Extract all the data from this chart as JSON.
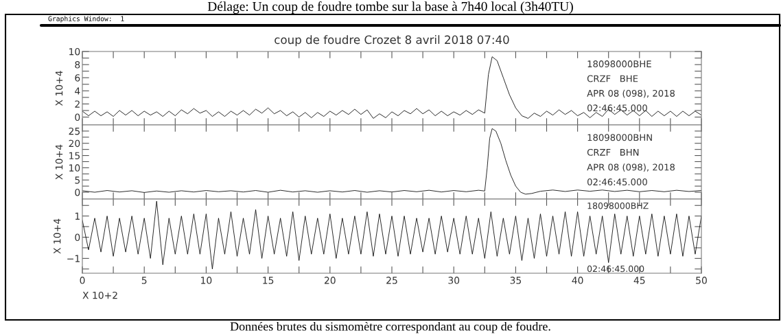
{
  "chart_data": [
    {
      "type": "line",
      "title": "coup de foudre Crozet 8 avril 2018 07:40",
      "ylabel": "X 10+4",
      "tick_labels": "y",
      "legend": false,
      "grid": false,
      "marker": "none",
      "line_style": "solid",
      "annotations": [
        "18098000BHE",
        "CRZF   BHE",
        "APR 08 (098), 2018",
        "02:46:45.000"
      ],
      "xlim": [
        0,
        50
      ],
      "xticks": [
        0,
        {
          "value": 2.5,
          "label": null
        },
        5,
        {
          "value": 7.5,
          "label": null
        },
        10,
        {
          "value": 12.5,
          "label": null
        },
        15,
        {
          "value": 17.5,
          "label": null
        },
        20,
        {
          "value": 22.5,
          "label": null
        },
        25,
        {
          "value": 27.5,
          "label": null
        },
        30,
        {
          "value": 32.5,
          "label": null
        },
        35,
        {
          "value": 37.5,
          "label": null
        },
        40,
        {
          "value": 42.5,
          "label": null
        },
        45,
        {
          "value": 47.5,
          "label": null
        },
        50
      ],
      "ylim": [
        -1.2,
        10
      ],
      "yticks": [
        0,
        {
          "value": 1,
          "label": null
        },
        2,
        {
          "value": 3,
          "label": null
        },
        4,
        {
          "value": 5,
          "label": null
        },
        6,
        {
          "value": 7,
          "label": null
        },
        8,
        {
          "value": 9,
          "label": null
        },
        10
      ],
      "series": [
        {
          "color": "#000000",
          "x": [
            0,
            0.5,
            1,
            1.5,
            2,
            2.5,
            3,
            3.5,
            4,
            4.5,
            5,
            5.5,
            6,
            6.5,
            7,
            7.5,
            8,
            8.5,
            9,
            9.5,
            10,
            10.5,
            11,
            11.5,
            12,
            12.5,
            13,
            13.5,
            14,
            14.5,
            15,
            15.5,
            16,
            16.5,
            17,
            17.5,
            18,
            18.5,
            19,
            19.5,
            20,
            20.5,
            21,
            21.5,
            22,
            22.5,
            23,
            23.5,
            24,
            24.5,
            25,
            25.5,
            26,
            26.5,
            27,
            27.5,
            28,
            28.5,
            29,
            29.5,
            30,
            30.5,
            31,
            31.5,
            32,
            32.5,
            32.8,
            33.1,
            33.5,
            34,
            34.5,
            35,
            35.5,
            36,
            36.5,
            37,
            37.5,
            38,
            38.5,
            39,
            39.5,
            40,
            40.5,
            41,
            41.5,
            42,
            42.5,
            43,
            43.5,
            44,
            44.5,
            45,
            45.5,
            46,
            46.5,
            47,
            47.5,
            48,
            48.5,
            49,
            49.5,
            50
          ],
          "values": [
            0.9,
            0.2,
            0.9,
            0.2,
            0.8,
            0.1,
            1.0,
            0.3,
            1.0,
            0.2,
            0.9,
            0.3,
            0.8,
            0.1,
            0.9,
            0.2,
            1.1,
            0.5,
            1.3,
            0.6,
            1.0,
            0.1,
            0.8,
            0.1,
            0.9,
            0.3,
            1.0,
            0.3,
            1.2,
            0.6,
            1.4,
            0.5,
            1.0,
            0.2,
            0.8,
            0.0,
            0.7,
            -0.1,
            0.7,
            0.1,
            0.9,
            0.3,
            1.0,
            0.4,
            1.2,
            0.4,
            1.1,
            -0.2,
            0.5,
            -0.1,
            0.8,
            0.2,
            1.0,
            0.5,
            1.3,
            0.5,
            1.1,
            0.2,
            0.9,
            0.2,
            0.8,
            0.3,
            1.0,
            0.4,
            1.1,
            0.6,
            6.5,
            9.2,
            8.6,
            6.0,
            3.4,
            1.4,
            0.2,
            -0.2,
            0.6,
            0.1,
            0.9,
            0.3,
            1.1,
            0.4,
            1.0,
            0.2,
            0.7,
            -0.1,
            0.7,
            0.1,
            1.2,
            0.4,
            1.1,
            0.3,
            1.0,
            0.2,
            1.0,
            0.1,
            0.9,
            0.2,
            0.9,
            0.1,
            0.9,
            0.2,
            0.9,
            0.3
          ]
        }
      ]
    },
    {
      "type": "line",
      "ylabel": "X 10+4",
      "tick_labels": "y",
      "legend": false,
      "grid": false,
      "marker": "none",
      "line_style": "solid",
      "annotations": [
        "18098000BHN",
        "CRZF   BHN",
        "APR 08 (098), 2018",
        "02:46:45.000"
      ],
      "xlim": [
        0,
        50
      ],
      "xticks": [
        0,
        {
          "value": 2.5,
          "label": null
        },
        5,
        {
          "value": 7.5,
          "label": null
        },
        10,
        {
          "value": 12.5,
          "label": null
        },
        15,
        {
          "value": 17.5,
          "label": null
        },
        20,
        {
          "value": 22.5,
          "label": null
        },
        25,
        {
          "value": 27.5,
          "label": null
        },
        30,
        {
          "value": 32.5,
          "label": null
        },
        35,
        {
          "value": 37.5,
          "label": null
        },
        40,
        {
          "value": 42.5,
          "label": null
        },
        45,
        {
          "value": 47.5,
          "label": null
        },
        50
      ],
      "ylim": [
        -2.8,
        27.5
      ],
      "yticks": [
        0,
        {
          "value": 2.5,
          "label": null
        },
        5,
        {
          "value": 7.5,
          "label": null
        },
        10,
        {
          "value": 12.5,
          "label": null
        },
        15,
        {
          "value": 17.5,
          "label": null
        },
        20,
        {
          "value": 22.5,
          "label": null
        },
        25
      ],
      "series": [
        {
          "color": "#000000",
          "x": [
            0,
            1,
            2,
            3,
            4,
            5,
            6,
            7,
            8,
            9,
            10,
            11,
            12,
            13,
            14,
            15,
            16,
            17,
            18,
            19,
            20,
            21,
            22,
            23,
            24,
            25,
            26,
            27,
            28,
            29,
            30,
            31,
            32,
            32.5,
            32.7,
            32.9,
            33.1,
            33.4,
            33.8,
            34.2,
            34.6,
            35,
            35.4,
            35.8,
            36.3,
            37,
            38,
            39,
            40,
            41,
            42,
            43,
            44,
            45,
            46,
            47,
            48,
            49,
            50
          ],
          "values": [
            0.6,
            0.0,
            0.7,
            0.1,
            0.6,
            -0.1,
            0.5,
            0.0,
            0.6,
            0.1,
            0.7,
            0.2,
            0.6,
            0.1,
            0.7,
            0.0,
            0.8,
            0.1,
            0.6,
            0.0,
            0.6,
            0.1,
            0.7,
            0.0,
            0.6,
            0.1,
            0.7,
            0.2,
            0.8,
            0.1,
            0.7,
            0.2,
            0.8,
            0.5,
            10,
            22,
            26,
            25,
            20,
            13,
            7,
            2.5,
            0.0,
            -0.8,
            -0.5,
            0.4,
            0.9,
            0.3,
            0.9,
            0.4,
            0.9,
            0.3,
            0.8,
            0.2,
            0.7,
            0.2,
            0.8,
            0.3,
            0.7
          ]
        }
      ]
    },
    {
      "type": "line",
      "ylabel": "X 10+4",
      "xlabel": "X 10+2",
      "legend": false,
      "grid": false,
      "marker": "none",
      "line_style": "solid",
      "annotations": [
        "18098000BHZ",
        "02:46:45.000"
      ],
      "xlim": [
        0,
        50
      ],
      "xticks": [
        0,
        {
          "value": 2.5,
          "label": null
        },
        5,
        {
          "value": 7.5,
          "label": null
        },
        10,
        {
          "value": 12.5,
          "label": null
        },
        15,
        {
          "value": 17.5,
          "label": null
        },
        20,
        {
          "value": 22.5,
          "label": null
        },
        25,
        {
          "value": 27.5,
          "label": null
        },
        30,
        {
          "value": 32.5,
          "label": null
        },
        35,
        {
          "value": 37.5,
          "label": null
        },
        40,
        {
          "value": 42.5,
          "label": null
        },
        45,
        {
          "value": 47.5,
          "label": null
        },
        50
      ],
      "ylim": [
        -1.7,
        1.8
      ],
      "yticks": [
        {
          "value": -1.5,
          "label": null
        },
        {
          "value": -1,
          "label": "−1"
        },
        {
          "value": -0.5,
          "label": null
        },
        0,
        {
          "value": 0.5,
          "label": null
        },
        1,
        {
          "value": 1.5,
          "label": null
        }
      ],
      "series": [
        {
          "color": "#000000",
          "x": [
            0,
            0.5,
            1,
            1.5,
            2,
            2.5,
            3,
            3.5,
            4,
            4.5,
            5,
            5.5,
            6,
            6.5,
            7,
            7.5,
            8,
            8.5,
            9,
            9.5,
            10,
            10.5,
            11,
            11.5,
            12,
            12.5,
            13,
            13.5,
            14,
            14.5,
            15,
            15.5,
            16,
            16.5,
            17,
            17.5,
            18,
            18.5,
            19,
            19.5,
            20,
            20.5,
            21,
            21.5,
            22,
            22.5,
            23,
            23.5,
            24,
            24.5,
            25,
            25.5,
            26,
            26.5,
            27,
            27.5,
            28,
            28.5,
            29,
            29.5,
            30,
            30.5,
            31,
            31.5,
            32,
            32.5,
            33,
            33.5,
            34,
            34.5,
            35,
            35.5,
            36,
            36.5,
            37,
            37.5,
            38,
            38.5,
            39,
            39.5,
            40,
            40.5,
            41,
            41.5,
            42,
            42.5,
            43,
            43.5,
            44,
            44.5,
            45,
            45.5,
            46,
            46.5,
            47,
            47.5,
            48,
            48.5,
            49,
            49.5,
            50
          ],
          "values": [
            0.8,
            -0.6,
            0.9,
            -0.7,
            1.0,
            -0.9,
            0.9,
            -0.7,
            1.0,
            -0.8,
            0.9,
            -1.0,
            1.7,
            -1.3,
            0.9,
            -0.8,
            1.0,
            -0.8,
            1.1,
            -0.8,
            1.1,
            -1.5,
            0.9,
            -0.8,
            1.2,
            -0.9,
            0.9,
            -0.8,
            1.3,
            -1.0,
            1.0,
            -0.8,
            0.9,
            -0.9,
            1.2,
            -1.1,
            1.0,
            -0.8,
            0.9,
            -0.8,
            1.1,
            -1.0,
            0.9,
            -0.8,
            1.0,
            -0.8,
            1.2,
            -0.9,
            1.1,
            -0.8,
            1.0,
            -0.9,
            1.0,
            -0.8,
            0.9,
            -0.7,
            0.9,
            -0.8,
            1.0,
            -0.7,
            0.9,
            -0.8,
            1.0,
            -0.8,
            0.9,
            -1.0,
            1.2,
            -0.9,
            0.9,
            -0.8,
            1.0,
            -1.1,
            0.9,
            -1.0,
            1.1,
            -0.9,
            1.0,
            -0.8,
            1.2,
            -0.9,
            1.2,
            -0.9,
            1.0,
            -0.8,
            1.0,
            -1.2,
            1.1,
            -0.8,
            1.0,
            -0.9,
            1.0,
            -0.8,
            1.1,
            -0.9,
            1.0,
            -0.8,
            1.1,
            -0.9,
            1.0,
            -0.8,
            1.0
          ]
        }
      ]
    },
    {
      "type": "other",
      "annotations": [
        "Délage: Un coup de foudre tombe sur la base à 7h40 local (3h40TU)",
        "Graphics Window:  1",
        "Données brutes du sismomètre correspondant au coup de foudre."
      ]
    }
  ]
}
